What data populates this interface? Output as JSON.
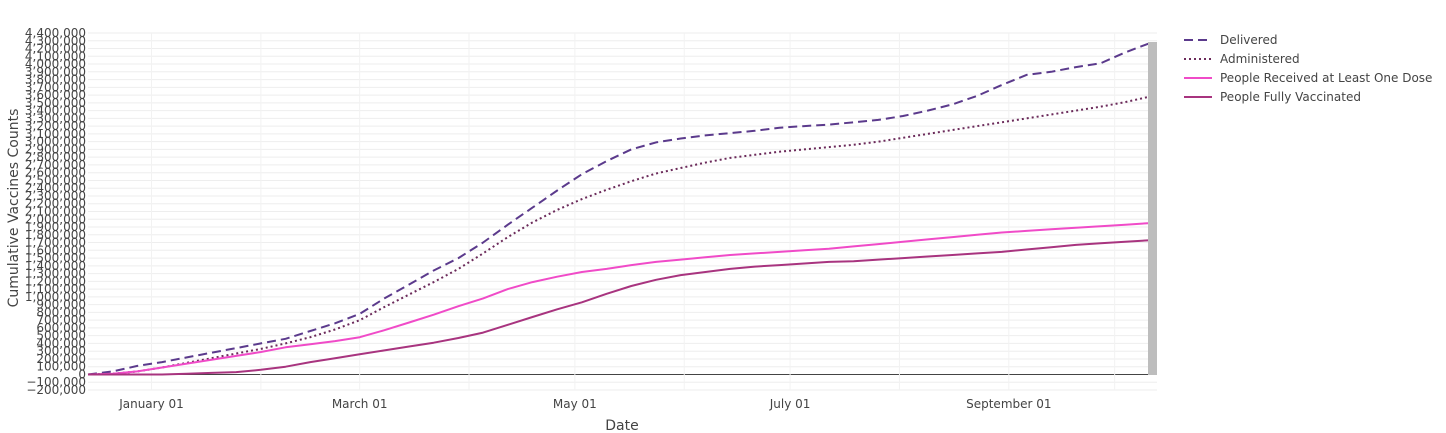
{
  "chart_data": {
    "type": "line",
    "title": "",
    "xlabel": "Date",
    "ylabel": "Cumulative Vaccines Counts",
    "x_start": "2020-12-14",
    "x_end": "2021-10-13",
    "ylim": [
      -200000,
      4400000
    ],
    "y_tick_step": 100000,
    "x_ticks": [
      {
        "date": "2021-01-01",
        "label": "January 01"
      },
      {
        "date": "2021-03-01",
        "label": "March 01"
      },
      {
        "date": "2021-05-01",
        "label": "May 01"
      },
      {
        "date": "2021-07-01",
        "label": "July 01"
      },
      {
        "date": "2021-09-01",
        "label": "September 01"
      }
    ],
    "legend_position": "top-right",
    "grid": true,
    "series": [
      {
        "name": "Delivered",
        "color": "#5b3a8c",
        "dash": "dash",
        "points": [
          [
            "2020-12-14",
            0
          ],
          [
            "2020-12-21",
            40000
          ],
          [
            "2020-12-28",
            110000
          ],
          [
            "2021-01-04",
            160000
          ],
          [
            "2021-01-11",
            220000
          ],
          [
            "2021-01-18",
            280000
          ],
          [
            "2021-01-25",
            340000
          ],
          [
            "2021-02-01",
            400000
          ],
          [
            "2021-02-08",
            460000
          ],
          [
            "2021-02-15",
            560000
          ],
          [
            "2021-02-22",
            660000
          ],
          [
            "2021-03-01",
            780000
          ],
          [
            "2021-03-08",
            980000
          ],
          [
            "2021-03-15",
            1160000
          ],
          [
            "2021-03-22",
            1340000
          ],
          [
            "2021-03-29",
            1500000
          ],
          [
            "2021-04-05",
            1700000
          ],
          [
            "2021-04-12",
            1930000
          ],
          [
            "2021-04-19",
            2150000
          ],
          [
            "2021-04-26",
            2370000
          ],
          [
            "2021-05-03",
            2580000
          ],
          [
            "2021-05-10",
            2750000
          ],
          [
            "2021-05-17",
            2900000
          ],
          [
            "2021-05-24",
            2990000
          ],
          [
            "2021-05-31",
            3040000
          ],
          [
            "2021-06-07",
            3080000
          ],
          [
            "2021-06-14",
            3110000
          ],
          [
            "2021-06-21",
            3140000
          ],
          [
            "2021-06-28",
            3180000
          ],
          [
            "2021-07-05",
            3200000
          ],
          [
            "2021-07-12",
            3220000
          ],
          [
            "2021-07-19",
            3250000
          ],
          [
            "2021-07-26",
            3280000
          ],
          [
            "2021-08-02",
            3330000
          ],
          [
            "2021-08-09",
            3400000
          ],
          [
            "2021-08-16",
            3480000
          ],
          [
            "2021-08-23",
            3590000
          ],
          [
            "2021-08-30",
            3730000
          ],
          [
            "2021-09-06",
            3860000
          ],
          [
            "2021-09-13",
            3900000
          ],
          [
            "2021-09-20",
            3960000
          ],
          [
            "2021-09-27",
            4010000
          ],
          [
            "2021-10-04",
            4150000
          ],
          [
            "2021-10-11",
            4270000
          ]
        ]
      },
      {
        "name": "Administered",
        "color": "#6b2a5a",
        "dash": "dot",
        "points": [
          [
            "2020-12-14",
            0
          ],
          [
            "2020-12-21",
            10000
          ],
          [
            "2020-12-28",
            40000
          ],
          [
            "2021-01-04",
            90000
          ],
          [
            "2021-01-11",
            150000
          ],
          [
            "2021-01-18",
            210000
          ],
          [
            "2021-01-25",
            270000
          ],
          [
            "2021-02-01",
            330000
          ],
          [
            "2021-02-08",
            400000
          ],
          [
            "2021-02-15",
            480000
          ],
          [
            "2021-02-22",
            580000
          ],
          [
            "2021-03-01",
            700000
          ],
          [
            "2021-03-08",
            870000
          ],
          [
            "2021-03-15",
            1030000
          ],
          [
            "2021-03-22",
            1190000
          ],
          [
            "2021-03-29",
            1360000
          ],
          [
            "2021-04-05",
            1560000
          ],
          [
            "2021-04-12",
            1770000
          ],
          [
            "2021-04-19",
            1960000
          ],
          [
            "2021-04-26",
            2120000
          ],
          [
            "2021-05-03",
            2260000
          ],
          [
            "2021-05-10",
            2380000
          ],
          [
            "2021-05-17",
            2490000
          ],
          [
            "2021-05-24",
            2590000
          ],
          [
            "2021-05-31",
            2660000
          ],
          [
            "2021-06-07",
            2730000
          ],
          [
            "2021-06-14",
            2790000
          ],
          [
            "2021-06-21",
            2830000
          ],
          [
            "2021-06-28",
            2870000
          ],
          [
            "2021-07-05",
            2900000
          ],
          [
            "2021-07-12",
            2930000
          ],
          [
            "2021-07-19",
            2960000
          ],
          [
            "2021-07-26",
            3000000
          ],
          [
            "2021-08-02",
            3050000
          ],
          [
            "2021-08-09",
            3100000
          ],
          [
            "2021-08-16",
            3150000
          ],
          [
            "2021-08-23",
            3200000
          ],
          [
            "2021-08-30",
            3250000
          ],
          [
            "2021-09-06",
            3300000
          ],
          [
            "2021-09-13",
            3350000
          ],
          [
            "2021-09-20",
            3400000
          ],
          [
            "2021-09-27",
            3450000
          ],
          [
            "2021-10-04",
            3510000
          ],
          [
            "2021-10-11",
            3580000
          ]
        ]
      },
      {
        "name": "People Received at Least One Dose",
        "color": "#f04bc8",
        "dash": "solid",
        "points": [
          [
            "2020-12-14",
            0
          ],
          [
            "2020-12-21",
            10000
          ],
          [
            "2020-12-28",
            40000
          ],
          [
            "2021-01-04",
            90000
          ],
          [
            "2021-01-11",
            140000
          ],
          [
            "2021-01-18",
            190000
          ],
          [
            "2021-01-25",
            240000
          ],
          [
            "2021-02-01",
            290000
          ],
          [
            "2021-02-08",
            350000
          ],
          [
            "2021-02-15",
            390000
          ],
          [
            "2021-02-22",
            430000
          ],
          [
            "2021-03-01",
            480000
          ],
          [
            "2021-03-08",
            570000
          ],
          [
            "2021-03-15",
            670000
          ],
          [
            "2021-03-22",
            770000
          ],
          [
            "2021-03-29",
            880000
          ],
          [
            "2021-04-05",
            980000
          ],
          [
            "2021-04-12",
            1100000
          ],
          [
            "2021-04-19",
            1190000
          ],
          [
            "2021-04-26",
            1260000
          ],
          [
            "2021-05-03",
            1320000
          ],
          [
            "2021-05-10",
            1360000
          ],
          [
            "2021-05-17",
            1410000
          ],
          [
            "2021-05-24",
            1450000
          ],
          [
            "2021-05-31",
            1480000
          ],
          [
            "2021-06-07",
            1510000
          ],
          [
            "2021-06-14",
            1540000
          ],
          [
            "2021-06-21",
            1560000
          ],
          [
            "2021-06-28",
            1580000
          ],
          [
            "2021-07-05",
            1600000
          ],
          [
            "2021-07-12",
            1620000
          ],
          [
            "2021-07-19",
            1650000
          ],
          [
            "2021-07-26",
            1680000
          ],
          [
            "2021-08-02",
            1710000
          ],
          [
            "2021-08-09",
            1740000
          ],
          [
            "2021-08-16",
            1770000
          ],
          [
            "2021-08-23",
            1800000
          ],
          [
            "2021-08-30",
            1830000
          ],
          [
            "2021-09-06",
            1850000
          ],
          [
            "2021-09-13",
            1870000
          ],
          [
            "2021-09-20",
            1890000
          ],
          [
            "2021-09-27",
            1910000
          ],
          [
            "2021-10-04",
            1930000
          ],
          [
            "2021-10-11",
            1950000
          ]
        ]
      },
      {
        "name": "People Fully Vaccinated",
        "color": "#a8347f",
        "dash": "solid",
        "points": [
          [
            "2020-12-14",
            0
          ],
          [
            "2020-12-21",
            0
          ],
          [
            "2020-12-28",
            0
          ],
          [
            "2021-01-04",
            0
          ],
          [
            "2021-01-11",
            10000
          ],
          [
            "2021-01-18",
            20000
          ],
          [
            "2021-01-25",
            30000
          ],
          [
            "2021-02-01",
            60000
          ],
          [
            "2021-02-08",
            100000
          ],
          [
            "2021-02-15",
            160000
          ],
          [
            "2021-02-22",
            210000
          ],
          [
            "2021-03-01",
            260000
          ],
          [
            "2021-03-08",
            310000
          ],
          [
            "2021-03-15",
            360000
          ],
          [
            "2021-03-22",
            410000
          ],
          [
            "2021-03-29",
            470000
          ],
          [
            "2021-04-05",
            540000
          ],
          [
            "2021-04-12",
            640000
          ],
          [
            "2021-04-19",
            740000
          ],
          [
            "2021-04-26",
            840000
          ],
          [
            "2021-05-03",
            930000
          ],
          [
            "2021-05-10",
            1040000
          ],
          [
            "2021-05-17",
            1140000
          ],
          [
            "2021-05-24",
            1220000
          ],
          [
            "2021-05-31",
            1280000
          ],
          [
            "2021-06-07",
            1320000
          ],
          [
            "2021-06-14",
            1360000
          ],
          [
            "2021-06-21",
            1390000
          ],
          [
            "2021-06-28",
            1410000
          ],
          [
            "2021-07-05",
            1430000
          ],
          [
            "2021-07-12",
            1450000
          ],
          [
            "2021-07-19",
            1460000
          ],
          [
            "2021-07-26",
            1480000
          ],
          [
            "2021-08-02",
            1500000
          ],
          [
            "2021-08-09",
            1520000
          ],
          [
            "2021-08-16",
            1540000
          ],
          [
            "2021-08-23",
            1560000
          ],
          [
            "2021-08-30",
            1580000
          ],
          [
            "2021-09-06",
            1610000
          ],
          [
            "2021-09-13",
            1640000
          ],
          [
            "2021-09-20",
            1670000
          ],
          [
            "2021-09-27",
            1690000
          ],
          [
            "2021-10-04",
            1710000
          ],
          [
            "2021-10-11",
            1730000
          ]
        ]
      }
    ]
  }
}
